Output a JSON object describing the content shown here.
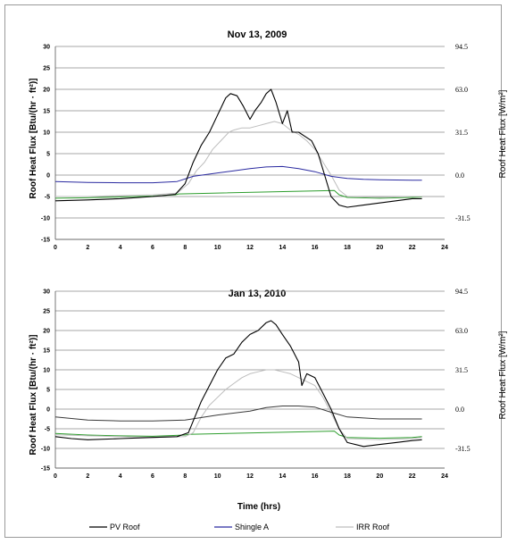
{
  "legend": {
    "items": [
      {
        "name": "PV Roof",
        "color": "#000000"
      },
      {
        "name": "Shingle A",
        "color": "#2a2aa0"
      },
      {
        "name": "IRR Roof",
        "color": "#bdbdbd"
      }
    ]
  },
  "chart_data": [
    {
      "type": "line",
      "title": "Nov 13, 2009",
      "ylabel": "Roof Heat Flux [Btu/(hr · ft²)]",
      "y2label": "Roof Heat Flux [W/m²]",
      "xlabel": "",
      "xlim": [
        0,
        24
      ],
      "ylim": [
        -15,
        30
      ],
      "xticks": [
        "0",
        "2",
        "4",
        "6",
        "8",
        "10",
        "12",
        "14",
        "16",
        "18",
        "20",
        "22",
        "24"
      ],
      "yticks": [
        "30",
        "25",
        "20",
        "15",
        "10",
        "5",
        "0",
        "-5",
        "-10",
        "-15"
      ],
      "y2ticks": [
        "94.5",
        "63.0",
        "31.5",
        "0.0",
        "-31.5"
      ],
      "grid": true,
      "series": [
        {
          "name": "PV Roof",
          "color": "#000000",
          "x": [
            0,
            2,
            4,
            6,
            7.4,
            8,
            8.5,
            9,
            9.5,
            10,
            10.5,
            10.8,
            11.2,
            11.6,
            12,
            12.3,
            12.7,
            13,
            13.3,
            13.6,
            14,
            14.3,
            14.6,
            15,
            15.4,
            15.8,
            16.2,
            16.6,
            17,
            17.5,
            18,
            19,
            20,
            21,
            22,
            22.6
          ],
          "y": [
            -6,
            -5.8,
            -5.5,
            -5,
            -4.5,
            -2,
            3,
            7,
            10,
            14,
            18,
            19,
            18.5,
            16,
            13,
            15,
            17,
            19,
            20,
            17,
            12,
            15,
            10,
            10,
            9,
            8,
            5,
            0,
            -5,
            -7,
            -7.5,
            -7,
            -6.5,
            -6,
            -5.5,
            -5.5
          ]
        },
        {
          "name": "Shingle A",
          "color": "#2a2aa0",
          "x": [
            0,
            2,
            4,
            6,
            7.5,
            8.5,
            10,
            11,
            12,
            13,
            14,
            15,
            16,
            17,
            18,
            19,
            20,
            22,
            22.6
          ],
          "y": [
            -1.5,
            -1.7,
            -1.8,
            -1.8,
            -1.5,
            -0.3,
            0.5,
            1,
            1.5,
            1.9,
            2,
            1.5,
            0.8,
            -0.3,
            -0.8,
            -1,
            -1.1,
            -1.2,
            -1.2
          ]
        },
        {
          "name": "IRR Roof",
          "color": "#bdbdbd",
          "x": [
            0,
            2,
            4,
            6,
            7.5,
            8.2,
            8.7,
            9.2,
            9.7,
            10.2,
            10.7,
            11,
            11.5,
            12,
            12.5,
            13,
            13.5,
            14,
            14.5,
            15,
            15.5,
            16,
            16.5,
            17,
            17.5,
            18,
            20,
            22,
            22.6
          ],
          "y": [
            -5,
            -5,
            -4.8,
            -4.6,
            -4.2,
            -2,
            1,
            3,
            6,
            8,
            10,
            10.5,
            11,
            11,
            11.5,
            12,
            12.5,
            12,
            10.5,
            9.5,
            8,
            6,
            3,
            0,
            -3.5,
            -5,
            -5.2,
            -5,
            -5
          ]
        },
        {
          "name": "",
          "color": "#2e9e2e",
          "x": [
            0,
            2,
            4,
            6,
            7.4,
            7.6,
            17.2,
            17.5,
            18,
            20,
            22,
            22.6
          ],
          "y": [
            -5.4,
            -5.3,
            -5.1,
            -4.9,
            -4.6,
            -4.4,
            -3.6,
            -4.6,
            -5.2,
            -5.4,
            -5.2,
            -5.1
          ]
        }
      ]
    },
    {
      "type": "line",
      "title": "Jan 13, 2010",
      "ylabel": "Roof Heat Flux [Btu/(hr · ft²)]",
      "y2label": "Roof Heat Flux [W/m²]",
      "xlabel": "Time (hrs)",
      "xlim": [
        0,
        24
      ],
      "ylim": [
        -15,
        30
      ],
      "xticks": [
        "0",
        "2",
        "4",
        "6",
        "8",
        "10",
        "12",
        "14",
        "16",
        "18",
        "20",
        "22",
        "24"
      ],
      "yticks": [
        "30",
        "25",
        "20",
        "15",
        "10",
        "5",
        "0",
        "-5",
        "-10",
        "-15"
      ],
      "y2ticks": [
        "94.5",
        "63.0",
        "31.5",
        "0.0",
        "-31.5"
      ],
      "grid": true,
      "series": [
        {
          "name": "PV Roof",
          "color": "#000000",
          "x": [
            0,
            1,
            2,
            4,
            6,
            7.5,
            8.2,
            9,
            9.5,
            10,
            10.5,
            11,
            11.5,
            12,
            12.5,
            13,
            13.3,
            13.6,
            14,
            14.5,
            15,
            15.2,
            15.5,
            16,
            16.5,
            17,
            17.5,
            18,
            19,
            20,
            21,
            22,
            22.6
          ],
          "y": [
            -7,
            -7.5,
            -7.8,
            -7.5,
            -7.2,
            -7,
            -6,
            2,
            6,
            10,
            13,
            14,
            17,
            19,
            20,
            22,
            22.5,
            21.5,
            19,
            16,
            12,
            6,
            9,
            8,
            4,
            0,
            -5,
            -8.5,
            -9.5,
            -9,
            -8.5,
            -8,
            -7.8
          ]
        },
        {
          "name": "Shingle A",
          "color": "#3a3a3a",
          "x": [
            0,
            2,
            4,
            6,
            8,
            10,
            12,
            13,
            14,
            15,
            16,
            17,
            18,
            20,
            22,
            22.6
          ],
          "y": [
            -2,
            -2.8,
            -3,
            -3,
            -2.8,
            -1.5,
            -0.5,
            0.4,
            0.8,
            0.8,
            0.5,
            -0.8,
            -2,
            -2.5,
            -2.5,
            -2.5
          ]
        },
        {
          "name": "IRR Roof",
          "color": "#bdbdbd",
          "x": [
            0,
            2,
            4,
            6,
            8,
            8.5,
            9,
            9.5,
            10,
            10.5,
            11,
            11.5,
            12,
            12.5,
            13,
            13.5,
            14,
            14.5,
            15,
            15.5,
            16,
            16.5,
            17,
            17.5,
            18,
            20,
            22,
            22.6
          ],
          "y": [
            -6.5,
            -6.8,
            -7,
            -7.2,
            -7,
            -6,
            -2,
            1,
            3,
            5,
            6.5,
            8,
            9,
            9.5,
            10,
            10,
            9.5,
            9,
            8,
            7,
            6,
            3,
            -1,
            -5,
            -7.5,
            -7.8,
            -7.5,
            -7.2
          ]
        },
        {
          "name": "",
          "color": "#2e9e2e",
          "x": [
            0,
            2,
            4,
            6,
            8,
            8.2,
            17.2,
            17.5,
            18,
            20,
            22,
            22.6
          ],
          "y": [
            -6.2,
            -6.6,
            -6.8,
            -6.9,
            -6.6,
            -6.4,
            -5.6,
            -6.6,
            -7.2,
            -7.4,
            -7.2,
            -7.0
          ]
        }
      ]
    }
  ]
}
